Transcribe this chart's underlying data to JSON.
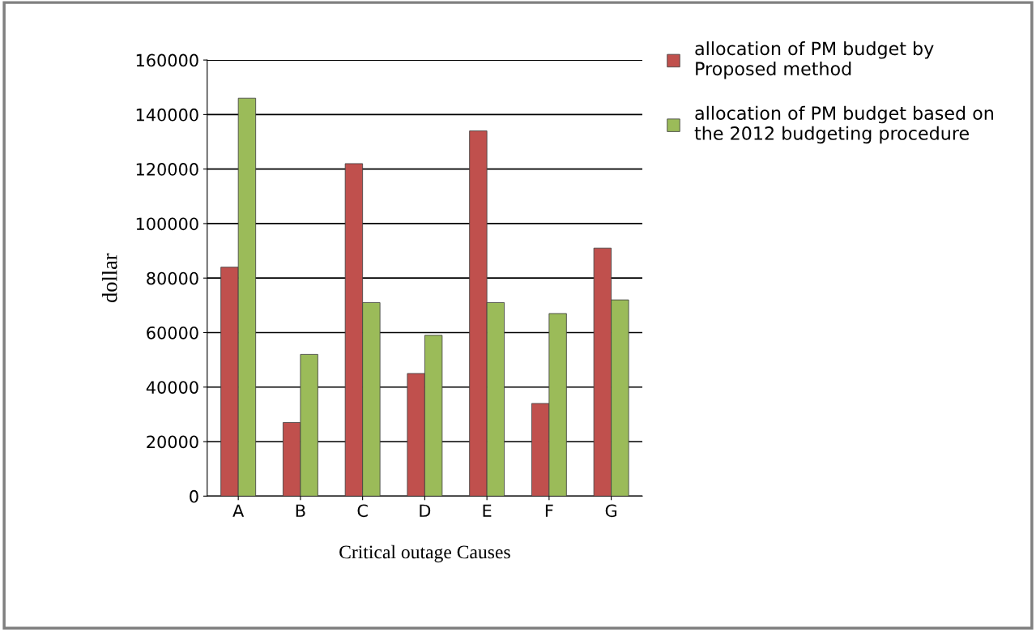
{
  "chart_data": {
    "type": "bar",
    "xlabel": "Critical outage Causes",
    "ylabel": "dollar",
    "categories": [
      "A",
      "B",
      "C",
      "D",
      "E",
      "F",
      "G"
    ],
    "series": [
      {
        "name": "allocation of PM budget by Proposed method",
        "color": "#c0504d",
        "values": [
          84000,
          27000,
          122000,
          45000,
          134000,
          34000,
          91000
        ]
      },
      {
        "name": "allocation of PM budget based on the 2012 budgeting procedure",
        "color": "#9bbb59",
        "values": [
          146000,
          52000,
          71000,
          59000,
          71000,
          67000,
          72000
        ]
      }
    ],
    "ylim": [
      0,
      160000
    ],
    "yticks": [
      0,
      20000,
      40000,
      60000,
      80000,
      100000,
      120000,
      140000,
      160000
    ],
    "grid": "y",
    "legend": "top right"
  }
}
